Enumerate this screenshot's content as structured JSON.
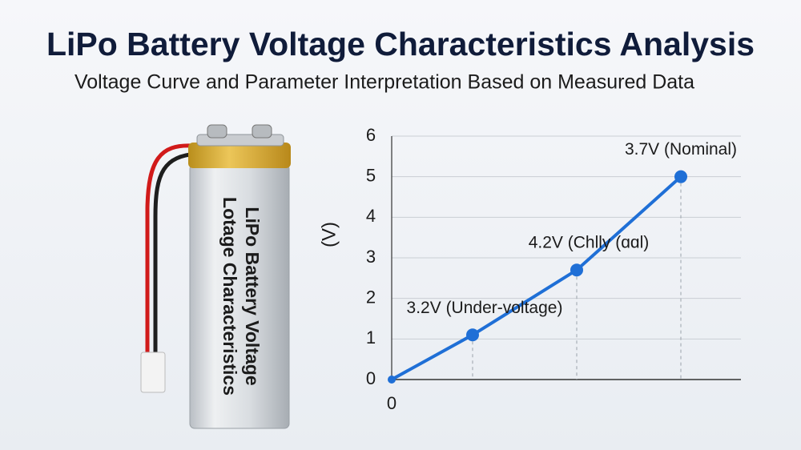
{
  "header": {
    "title": "LiPo Battery Voltage Characteristics Analysis",
    "subtitle": "Voltage Curve and Parameter Interpretation Based on Measured Data"
  },
  "battery": {
    "label_lines": [
      "LiPo Battery Voltage",
      "Lotage Characteristics"
    ]
  },
  "chart_data": {
    "type": "line",
    "y_label": "(V)",
    "x": [
      0,
      1.01,
      2.31,
      3.61
    ],
    "values": [
      0,
      1.1,
      2.7,
      5.0
    ],
    "color": "#1f6fd6",
    "xlim": [
      0,
      4.36
    ],
    "xticks": [
      0
    ],
    "ylim": [
      0,
      6
    ],
    "yticks": [
      0,
      1,
      2,
      3,
      4,
      5,
      6
    ],
    "grid": true,
    "annotations": [
      "3.2V (Under-voltage)",
      "4.2V (Chlly (ɑɑl)",
      "3.7V (Nominal)"
    ]
  }
}
